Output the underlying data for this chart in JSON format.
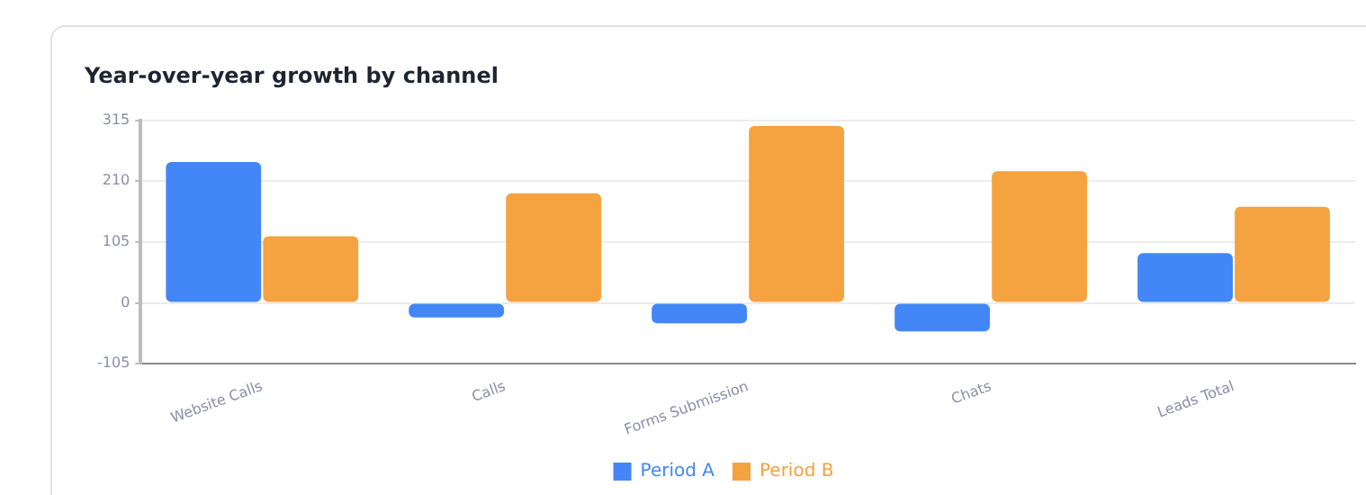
{
  "chart_data": {
    "type": "bar",
    "title": "Year-over-year growth by channel",
    "categories": [
      "Website Calls",
      "Calls",
      "Forms Submission",
      "Chats",
      "Leads Total"
    ],
    "series": [
      {
        "name": "Period A",
        "color": "#4287f5",
        "values": [
          243,
          -25,
          -35,
          -49,
          86
        ]
      },
      {
        "name": "Period B",
        "color": "#f5a240",
        "values": [
          115,
          189,
          305,
          227,
          166
        ]
      }
    ],
    "ylim": [
      -105,
      315
    ],
    "yticks": [
      -105,
      0,
      105,
      210,
      315
    ],
    "grid": "y",
    "legend": "bottom"
  }
}
